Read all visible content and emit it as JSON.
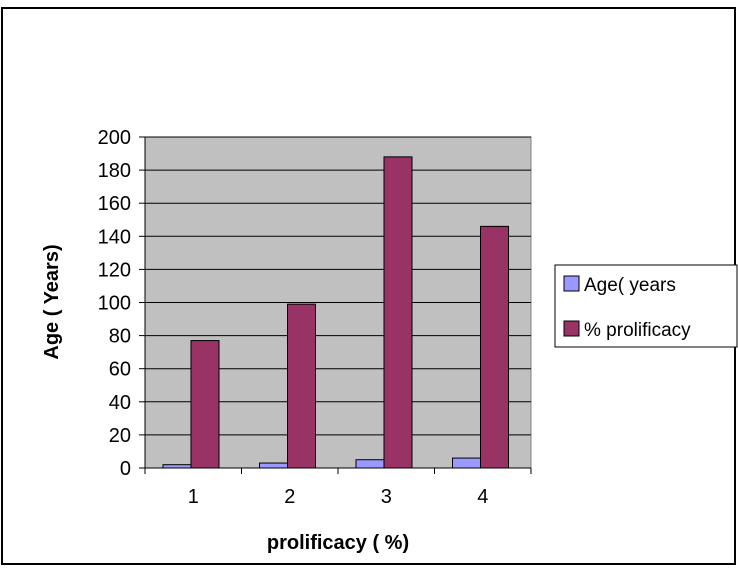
{
  "chart_data": {
    "type": "bar",
    "title": "",
    "xlabel": "prolificacy ( %)",
    "ylabel": "Age ( Years)",
    "categories": [
      "1",
      "2",
      "3",
      "4"
    ],
    "ylim": [
      0,
      200
    ],
    "yticks": [
      "0",
      "20",
      "40",
      "60",
      "80",
      "100",
      "120",
      "140",
      "160",
      "180",
      "200"
    ],
    "grid": true,
    "legend_position": "right",
    "series": [
      {
        "name": "Age( years",
        "color": "#9999ff",
        "values": [
          2,
          3,
          5,
          6
        ]
      },
      {
        "name": "% prolificacy",
        "color": "#993366",
        "values": [
          77,
          99,
          188,
          146
        ]
      }
    ],
    "plot_background": "#c0c0c0"
  }
}
